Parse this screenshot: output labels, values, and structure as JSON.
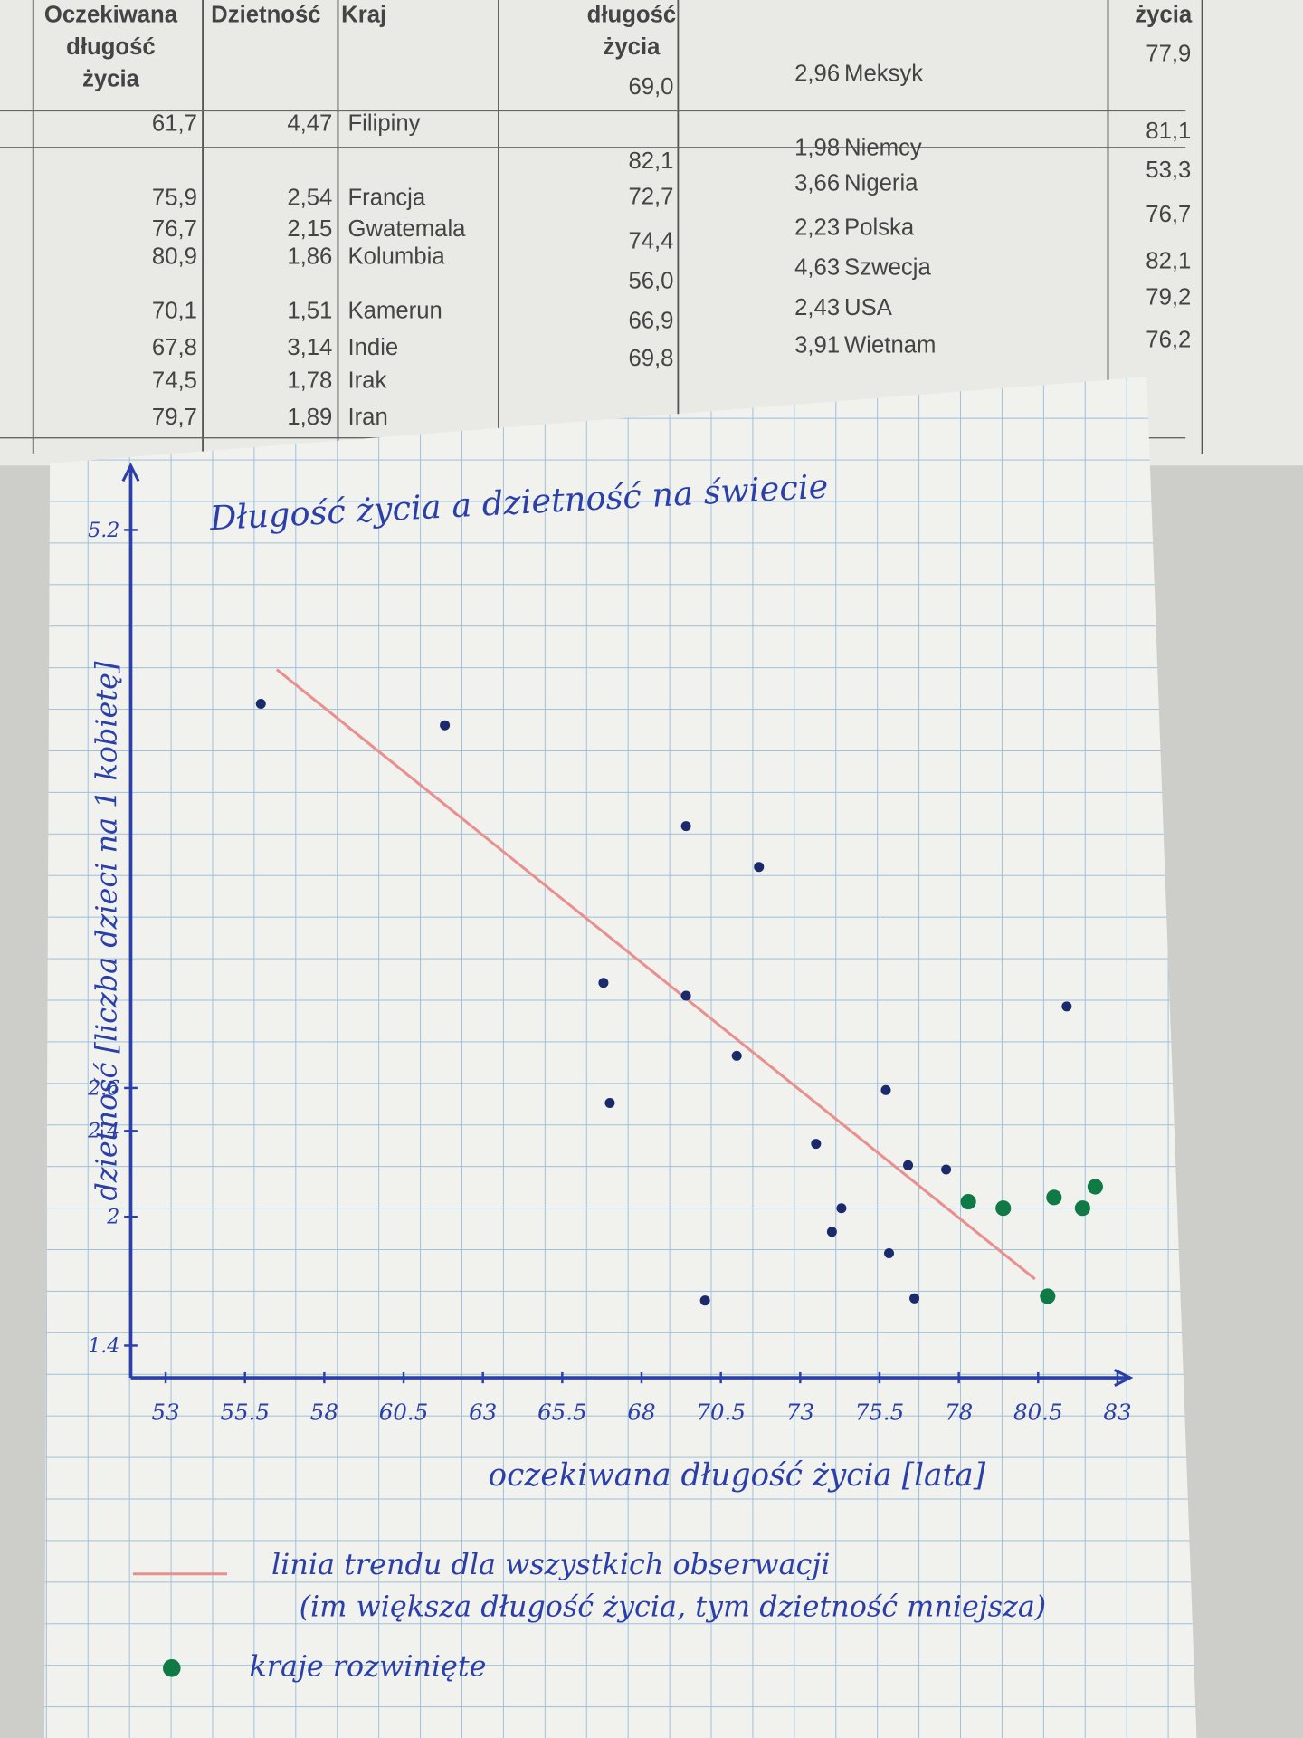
{
  "table": {
    "headers": [
      [
        "Oczekiwana",
        "długość",
        "życia"
      ],
      [
        "Dzietność"
      ],
      [
        "Kraj"
      ],
      [
        "długość",
        "życia"
      ],
      [
        "życia"
      ]
    ],
    "left_rows": [
      [
        "61,7",
        "4,47",
        "Filipiny"
      ],
      [
        "75,9",
        "2,54",
        "Francja"
      ],
      [
        "76,7",
        "2,15",
        "Gwatemala"
      ],
      [
        "80,9",
        "1,86",
        "Kolumbia"
      ],
      [
        "70,1",
        "1,51",
        "Kamerun"
      ],
      [
        "67,8",
        "3,14",
        "Indie"
      ],
      [
        "74,5",
        "1,78",
        "Irak"
      ],
      [
        "79,7",
        "1,89",
        "Iran"
      ]
    ],
    "right_rows": [
      [
        "69,0",
        "2,96",
        "Meksyk",
        "77,9"
      ],
      [
        "82,1",
        "1,98",
        "Niemcy",
        "81,1"
      ],
      [
        "72,7",
        "3,66",
        "Nigeria",
        "53,3"
      ],
      [
        "74,4",
        "2,23",
        "Polska",
        "76,7"
      ],
      [
        "56,0",
        "4,63",
        "Szwecja",
        "82,1"
      ],
      [
        "66,9",
        "2,43",
        "USA",
        "79,2"
      ],
      [
        "69,8",
        "3,91",
        "Wietnam",
        "76,2"
      ]
    ]
  },
  "chart_data": {
    "type": "scatter",
    "title": "Długość życia a dzietność na świecie",
    "x_label": "oczekiwana długość życia [lata]",
    "y_label": "dzietność [liczba dzieci na 1 kobietę]",
    "xlim": [
      51.9,
      83.4
    ],
    "xticks": [
      53,
      55.5,
      58,
      60.5,
      63,
      65.5,
      68,
      70.5,
      73,
      75.5,
      78,
      80.5,
      83
    ],
    "ylim": [
      1.25,
      5.5
    ],
    "yticks": [
      1.4,
      2,
      2.4,
      2.6,
      5.2
    ],
    "series": [
      {
        "color": "#1a2a6a",
        "x": [
          56.0,
          61.8,
          69.4,
          71.7,
          66.8,
          69.4,
          71.0,
          67.0,
          81.4,
          75.7,
          73.5,
          76.4,
          77.6,
          74.3,
          74.0,
          75.8,
          70.0,
          76.6
        ],
        "values": [
          4.39,
          4.29,
          3.82,
          3.63,
          3.09,
          3.03,
          2.75,
          2.53,
          2.98,
          2.59,
          2.34,
          2.24,
          2.22,
          2.04,
          1.93,
          1.83,
          1.61,
          1.62
        ]
      },
      {
        "name": "kraje rozwinięte",
        "color": "#0f7a45",
        "x": [
          78.3,
          79.4,
          81.0,
          81.9,
          82.3,
          80.8
        ],
        "values": [
          2.07,
          2.04,
          2.09,
          2.04,
          2.14,
          1.63
        ]
      }
    ],
    "trend": {
      "name": [
        "linia trendu dla wszystkich obserwacji",
        "(im większa długość życia, tym dzietność mniejsza)"
      ],
      "color": "#e9908f",
      "x": [
        56.5,
        80.4
      ],
      "values": [
        4.55,
        1.71
      ]
    }
  }
}
